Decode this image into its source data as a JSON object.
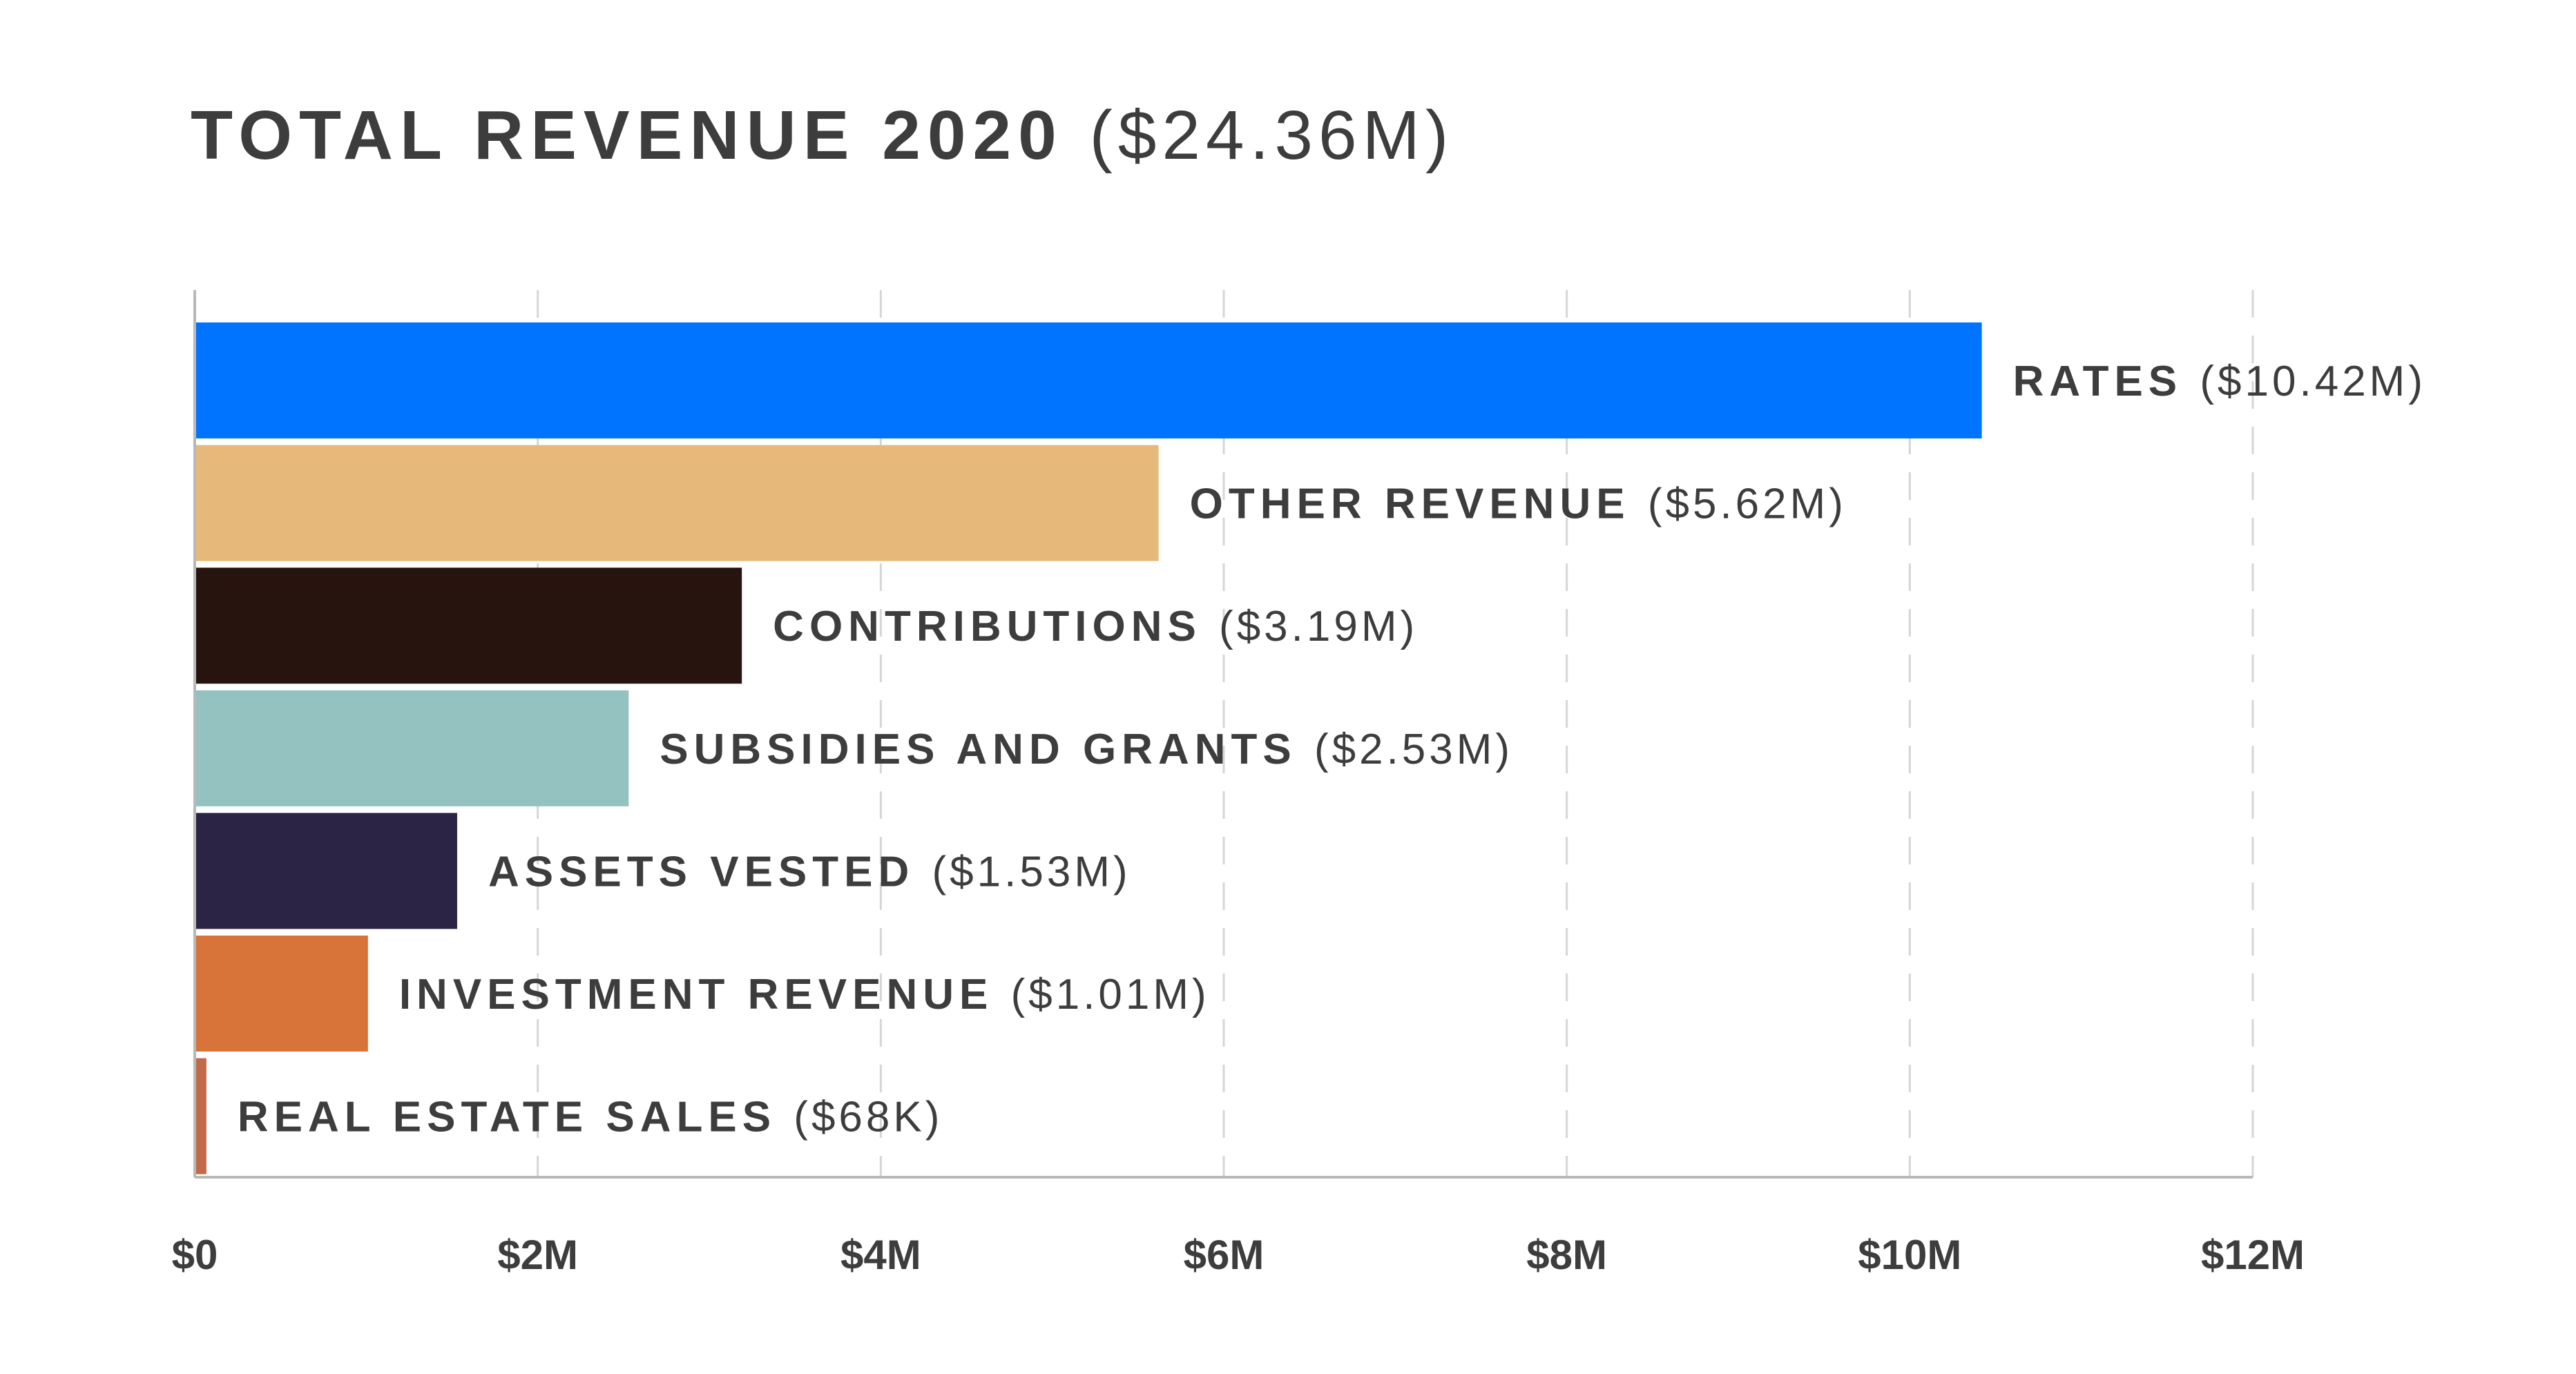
{
  "header": {
    "title": "TOTAL REVENUE 2020",
    "total": "($24.36M)"
  },
  "chart_data": {
    "type": "bar",
    "orientation": "horizontal",
    "title": "TOTAL REVENUE 2020 ($24.36M)",
    "xlabel": "",
    "ylabel": "",
    "xlim": [
      0,
      12000000
    ],
    "grid": true,
    "tick_values": [
      0,
      2000000,
      4000000,
      6000000,
      8000000,
      10000000,
      12000000
    ],
    "tick_labels": [
      "$0",
      "$2M",
      "$4M",
      "$6M",
      "$8M",
      "$10M",
      "$12M"
    ],
    "categories": [
      "RATES",
      "OTHER REVENUE",
      "CONTRIBUTIONS",
      "SUBSIDIES AND GRANTS",
      "ASSETS VESTED",
      "INVESTMENT REVENUE",
      "REAL ESTATE SALES"
    ],
    "values": [
      10420000,
      5620000,
      3190000,
      2530000,
      1530000,
      1010000,
      68000
    ],
    "value_labels": [
      "($10.42M)",
      "($5.62M)",
      "($3.19M)",
      "($2.53M)",
      "($1.53M)",
      "($1.01M)",
      "($68K)"
    ],
    "colors": [
      "#0073ff",
      "#e6b97a",
      "#28140e",
      "#93c2c0",
      "#2b2445",
      "#d8743a",
      "#c06a4a"
    ]
  },
  "colors": {
    "text": "#3d3d3d",
    "grid": "#d6d6d6",
    "axis": "#b8b8b8"
  }
}
